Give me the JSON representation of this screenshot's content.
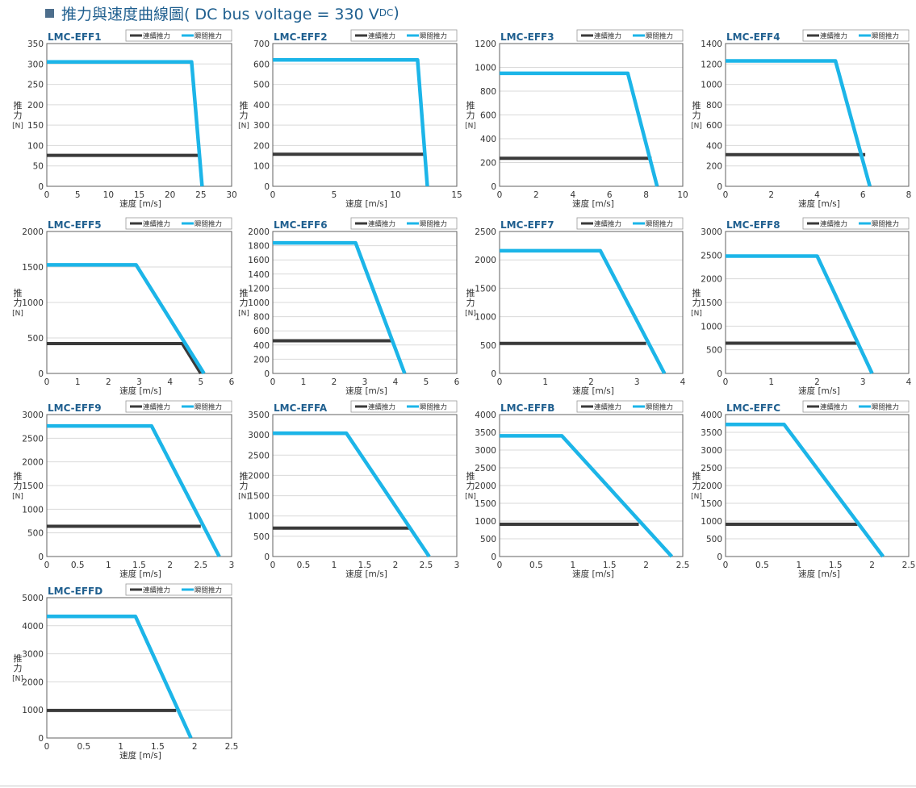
{
  "page": {
    "title_main": "推力與速度曲線圖( DC bus voltage = 330 V",
    "title_sub": "DC",
    "title_end": ")"
  },
  "colors": {
    "continuous": "#3a3a3a",
    "peak": "#1cb5e8",
    "title": "#1f5f8f",
    "grid": "#d9d9d9",
    "frame": "#606060"
  },
  "legend": {
    "continuous": "連續推力",
    "peak": "瞬間推力"
  },
  "axis": {
    "ylabel_line1": "推",
    "ylabel_line2": "力",
    "ylabel_unit": "[N]",
    "xlabel": "速度 [m/s]"
  },
  "chart_data": [
    {
      "type": "line",
      "title": "LMC-EFF1",
      "xlim": [
        0,
        30
      ],
      "ylim": [
        0,
        350
      ],
      "xticks": [
        0,
        5,
        10,
        15,
        20,
        25,
        30
      ],
      "yticks": [
        0,
        50,
        100,
        150,
        200,
        250,
        300,
        350
      ],
      "series": [
        {
          "name": "連續推力",
          "x": [
            0,
            24.8
          ],
          "y": [
            76,
            76
          ]
        },
        {
          "name": "瞬間推力",
          "x": [
            0,
            23.5,
            25.2
          ],
          "y": [
            305,
            305,
            0
          ]
        }
      ]
    },
    {
      "type": "line",
      "title": "LMC-EFF2",
      "xlim": [
        0,
        15
      ],
      "ylim": [
        0,
        700
      ],
      "xticks": [
        0,
        5,
        10,
        15
      ],
      "yticks": [
        0,
        100,
        200,
        300,
        400,
        500,
        600,
        700
      ],
      "series": [
        {
          "name": "連續推力",
          "x": [
            0,
            12.3
          ],
          "y": [
            157,
            157
          ]
        },
        {
          "name": "瞬間推力",
          "x": [
            0,
            11.8,
            12.6
          ],
          "y": [
            620,
            620,
            0
          ]
        }
      ]
    },
    {
      "type": "line",
      "title": "LMC-EFF3",
      "xlim": [
        0,
        10
      ],
      "ylim": [
        0,
        1200
      ],
      "xticks": [
        0,
        2,
        4,
        6,
        8,
        10
      ],
      "yticks": [
        0,
        200,
        400,
        600,
        800,
        1000,
        1200
      ],
      "series": [
        {
          "name": "連續推力",
          "x": [
            0,
            8.3
          ],
          "y": [
            235,
            235
          ]
        },
        {
          "name": "瞬間推力",
          "x": [
            0,
            7.0,
            8.6
          ],
          "y": [
            950,
            950,
            0
          ]
        }
      ]
    },
    {
      "type": "line",
      "title": "LMC-EFF4",
      "xlim": [
        0,
        8
      ],
      "ylim": [
        0,
        1400
      ],
      "xticks": [
        0,
        2,
        4,
        6,
        8
      ],
      "yticks": [
        0,
        200,
        400,
        600,
        800,
        1000,
        1200,
        1400
      ],
      "series": [
        {
          "name": "連續推力",
          "x": [
            0,
            6.1
          ],
          "y": [
            310,
            310
          ]
        },
        {
          "name": "瞬間推力",
          "x": [
            0,
            4.8,
            6.3
          ],
          "y": [
            1230,
            1230,
            0
          ]
        }
      ]
    },
    {
      "type": "line",
      "title": "LMC-EFF5",
      "xlim": [
        0,
        6
      ],
      "ylim": [
        0,
        2000
      ],
      "xticks": [
        0,
        1,
        2,
        3,
        4,
        5,
        6
      ],
      "yticks": [
        0,
        500,
        1000,
        1500,
        2000
      ],
      "series": [
        {
          "name": "連續推力",
          "x": [
            0,
            4.4,
            5.0
          ],
          "y": [
            420,
            420,
            0
          ]
        },
        {
          "name": "瞬間推力",
          "x": [
            0,
            2.9,
            5.1
          ],
          "y": [
            1530,
            1530,
            0
          ]
        }
      ]
    },
    {
      "type": "line",
      "title": "LMC-EFF6",
      "xlim": [
        0,
        6
      ],
      "ylim": [
        0,
        2000
      ],
      "xticks": [
        0,
        1,
        2,
        3,
        4,
        5,
        6
      ],
      "yticks": [
        0,
        200,
        400,
        600,
        800,
        1000,
        1200,
        1400,
        1600,
        1800,
        2000
      ],
      "series": [
        {
          "name": "連續推力",
          "x": [
            0,
            3.9
          ],
          "y": [
            460,
            460
          ]
        },
        {
          "name": "瞬間推力",
          "x": [
            0,
            2.7,
            4.3
          ],
          "y": [
            1840,
            1840,
            0
          ]
        }
      ]
    },
    {
      "type": "line",
      "title": "LMC-EFF7",
      "xlim": [
        0,
        4
      ],
      "ylim": [
        0,
        2500
      ],
      "xticks": [
        0,
        1,
        2,
        3,
        4
      ],
      "yticks": [
        0,
        500,
        1000,
        1500,
        2000,
        2500
      ],
      "series": [
        {
          "name": "連續推力",
          "x": [
            0,
            3.2
          ],
          "y": [
            530,
            530
          ]
        },
        {
          "name": "瞬間推力",
          "x": [
            0,
            2.2,
            3.6
          ],
          "y": [
            2160,
            2160,
            0
          ]
        }
      ]
    },
    {
      "type": "line",
      "title": "LMC-EFF8",
      "xlim": [
        0,
        4
      ],
      "ylim": [
        0,
        3000
      ],
      "xticks": [
        0,
        1,
        2,
        3,
        4
      ],
      "yticks": [
        0,
        500,
        1000,
        1500,
        2000,
        2500,
        3000
      ],
      "series": [
        {
          "name": "連續推力",
          "x": [
            0,
            2.9
          ],
          "y": [
            640,
            640
          ]
        },
        {
          "name": "瞬間推力",
          "x": [
            0,
            2.0,
            3.2
          ],
          "y": [
            2480,
            2480,
            0
          ]
        }
      ]
    },
    {
      "type": "line",
      "title": "LMC-EFF9",
      "xlim": [
        0,
        3
      ],
      "ylim": [
        0,
        3000
      ],
      "xticks": [
        "0",
        "0.5",
        "1",
        "1.5",
        "2",
        "2.5",
        "3"
      ],
      "yticks": [
        0,
        500,
        1000,
        1500,
        2000,
        2500,
        3000
      ],
      "series": [
        {
          "name": "連續推力",
          "x": [
            0,
            2.5
          ],
          "y": [
            640,
            640
          ]
        },
        {
          "name": "瞬間推力",
          "x": [
            0,
            1.7,
            2.8
          ],
          "y": [
            2760,
            2760,
            0
          ]
        }
      ]
    },
    {
      "type": "line",
      "title": "LMC-EFFA",
      "xlim": [
        0,
        3
      ],
      "ylim": [
        0,
        3500
      ],
      "xticks": [
        "0",
        "0.5",
        "1",
        "1.5",
        "2",
        "2.5",
        "3"
      ],
      "yticks": [
        0,
        500,
        1000,
        1500,
        2000,
        2500,
        3000,
        3500
      ],
      "series": [
        {
          "name": "連續推力",
          "x": [
            0,
            2.25
          ],
          "y": [
            700,
            700
          ]
        },
        {
          "name": "瞬間推力",
          "x": [
            0,
            1.2,
            2.55
          ],
          "y": [
            3040,
            3040,
            0
          ]
        }
      ]
    },
    {
      "type": "line",
      "title": "LMC-EFFB",
      "xlim": [
        0,
        2.5
      ],
      "ylim": [
        0,
        4000
      ],
      "xticks": [
        "0",
        "0.5",
        "1",
        "1.5",
        "2",
        "2.5"
      ],
      "yticks": [
        0,
        500,
        1000,
        1500,
        2000,
        2500,
        3000,
        3500,
        4000
      ],
      "series": [
        {
          "name": "連續推力",
          "x": [
            0,
            1.9
          ],
          "y": [
            910,
            910
          ]
        },
        {
          "name": "瞬間推力",
          "x": [
            0,
            0.85,
            2.35
          ],
          "y": [
            3400,
            3400,
            0
          ]
        }
      ]
    },
    {
      "type": "line",
      "title": "LMC-EFFC",
      "xlim": [
        0,
        2.5
      ],
      "ylim": [
        0,
        4000
      ],
      "xticks": [
        "0",
        "0.5",
        "1",
        "1.5",
        "2",
        "2.5"
      ],
      "yticks": [
        0,
        500,
        1000,
        1500,
        2000,
        2500,
        3000,
        3500,
        4000
      ],
      "series": [
        {
          "name": "連續推力",
          "x": [
            0,
            1.8
          ],
          "y": [
            910,
            910
          ]
        },
        {
          "name": "瞬間推力",
          "x": [
            0,
            0.8,
            2.15
          ],
          "y": [
            3720,
            3720,
            0
          ]
        }
      ]
    },
    {
      "type": "line",
      "title": "LMC-EFFD",
      "xlim": [
        0,
        2.5
      ],
      "ylim": [
        0,
        5000
      ],
      "xticks": [
        "0",
        "0.5",
        "1",
        "1.5",
        "2",
        "2.5"
      ],
      "yticks": [
        0,
        1000,
        2000,
        3000,
        4000,
        5000
      ],
      "series": [
        {
          "name": "連續推力",
          "x": [
            0,
            1.75
          ],
          "y": [
            980,
            980
          ]
        },
        {
          "name": "瞬間推力",
          "x": [
            0,
            1.2,
            1.95
          ],
          "y": [
            4330,
            4330,
            0
          ]
        }
      ]
    }
  ]
}
